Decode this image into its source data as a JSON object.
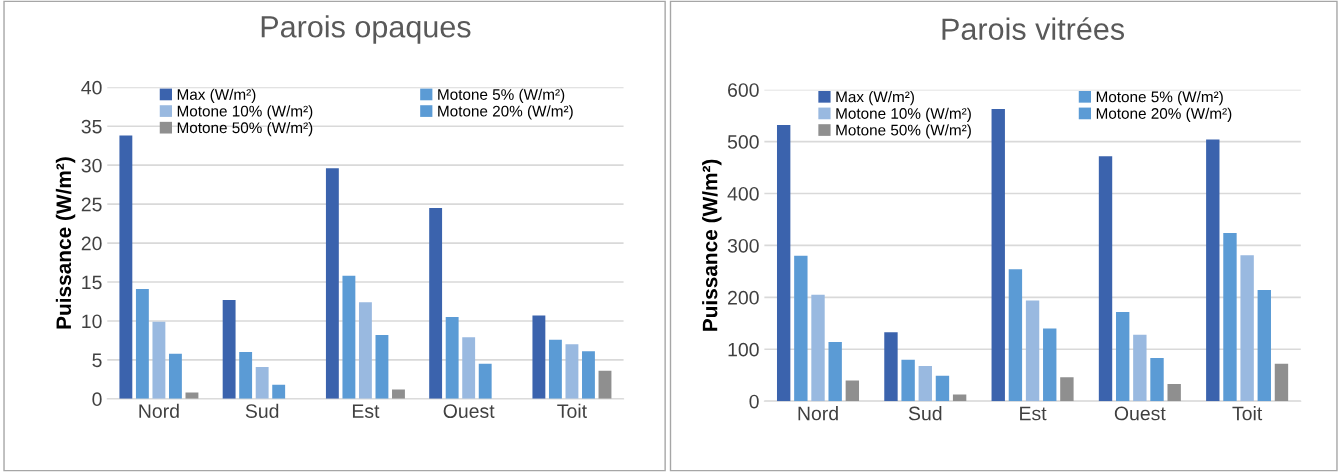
{
  "chart_data": [
    {
      "type": "bar",
      "title": "Parois opaques",
      "ylabel": "Puissance (W/m²)",
      "categories": [
        "Nord",
        "Sud",
        "Est",
        "Ouest",
        "Toit"
      ],
      "ylim": [
        0,
        40
      ],
      "yticks": [
        0,
        5,
        10,
        15,
        20,
        25,
        30,
        35,
        40
      ],
      "grid": "y",
      "legend": "top",
      "series": [
        {
          "name": "Max (W/m²)",
          "color": "#3b63ad",
          "values": [
            33.8,
            12.7,
            29.6,
            24.5,
            10.7
          ]
        },
        {
          "name": "Motone 5% (W/m²)",
          "color": "#5b9bd5",
          "values": [
            14.1,
            6.0,
            15.8,
            10.5,
            7.6
          ]
        },
        {
          "name": "Motone 10% (W/m²)",
          "color": "#99b9e0",
          "values": [
            9.9,
            4.1,
            12.4,
            7.9,
            7.0
          ]
        },
        {
          "name": "Motone 20% (W/m²)",
          "color": "#5b9bd5",
          "values": [
            5.8,
            1.8,
            8.2,
            4.5,
            6.1
          ]
        },
        {
          "name": "Motone 50% (W/m²)",
          "color": "#8f8f8f",
          "values": [
            0.8,
            0,
            1.2,
            0,
            3.6
          ]
        }
      ]
    },
    {
      "type": "bar",
      "title": "Parois vitrées",
      "ylabel": "Puissance (W/m²)",
      "categories": [
        "Nord",
        "Sud",
        "Est",
        "Ouest",
        "Toit"
      ],
      "ylim": [
        0,
        600
      ],
      "yticks": [
        0,
        100,
        200,
        300,
        400,
        500,
        600
      ],
      "grid": "y",
      "legend": "top",
      "series": [
        {
          "name": "Max (W/m²)",
          "color": "#3b63ad",
          "values": [
            532,
            133,
            563,
            472,
            504
          ]
        },
        {
          "name": "Motone 5% (W/m²)",
          "color": "#5b9bd5",
          "values": [
            280,
            80,
            254,
            172,
            324
          ]
        },
        {
          "name": "Motone 10% (W/m²)",
          "color": "#99b9e0",
          "values": [
            205,
            68,
            194,
            128,
            281
          ]
        },
        {
          "name": "Motone 20% (W/m²)",
          "color": "#5b9bd5",
          "values": [
            114,
            49,
            140,
            83,
            214
          ]
        },
        {
          "name": "Motone 50% (W/m²)",
          "color": "#8f8f8f",
          "values": [
            40,
            13,
            46,
            33,
            72
          ]
        }
      ]
    }
  ]
}
